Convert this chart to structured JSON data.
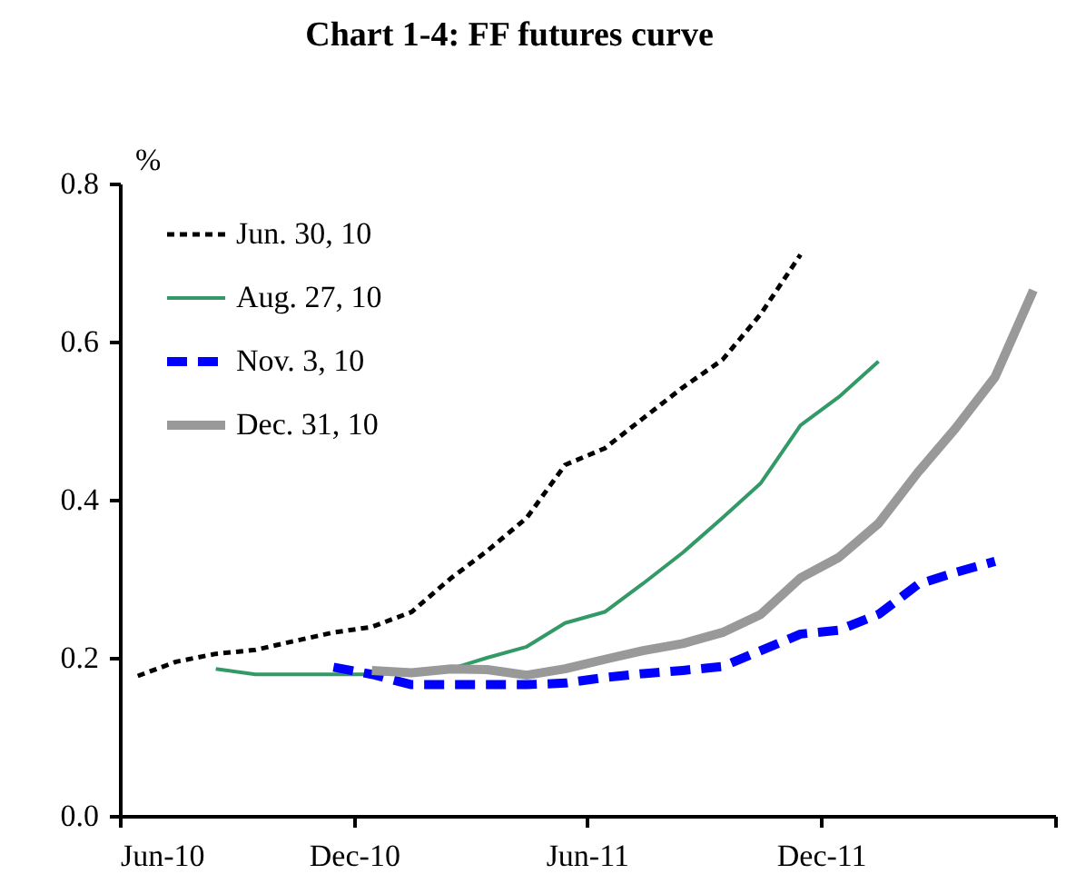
{
  "chart_data": {
    "type": "line",
    "title": "Chart 1-4: FF futures curve",
    "ylabel": "%",
    "xlim": [
      "2010-06-01",
      "2012-06-01"
    ],
    "xticks": [
      {
        "value": "2010-06-01",
        "label": "Jun-10"
      },
      {
        "value": "2010-12-01",
        "label": "Dec-10"
      },
      {
        "value": "2011-06-01",
        "label": "Jun-11"
      },
      {
        "value": "2011-12-01",
        "label": "Dec-11"
      },
      {
        "value": "2012-06-01",
        "label": null
      }
    ],
    "ylim": [
      0,
      0.8
    ],
    "yticks": [
      {
        "value": 0,
        "label": "0.0"
      },
      {
        "value": 0.2,
        "label": "0.2"
      },
      {
        "value": 0.4,
        "label": "0.4"
      },
      {
        "value": 0.6,
        "label": "0.6"
      },
      {
        "value": 0.8,
        "label": "0.8"
      }
    ],
    "grid": false,
    "legend": "top left",
    "marker": "none",
    "series": [
      {
        "name": "Jun. 30, 10",
        "color": "#000000",
        "line_style": "dashed",
        "x": [
          "2010-06-15",
          "2010-07-15",
          "2010-08-15",
          "2010-09-15",
          "2010-10-15",
          "2010-11-15",
          "2010-12-15",
          "2011-01-15",
          "2011-02-15",
          "2011-03-15",
          "2011-04-15",
          "2011-05-15",
          "2011-06-15",
          "2011-07-15",
          "2011-08-15",
          "2011-09-15",
          "2011-10-15",
          "2011-11-15"
        ],
        "values": [
          0.177,
          0.195,
          0.205,
          0.21,
          0.221,
          0.232,
          0.239,
          0.258,
          0.301,
          0.335,
          0.377,
          0.444,
          0.465,
          0.503,
          0.542,
          0.577,
          0.635,
          0.71
        ]
      },
      {
        "name": "Aug. 27, 10",
        "color": "#339966",
        "line_style": "solid",
        "x": [
          "2010-08-15",
          "2010-09-15",
          "2010-10-15",
          "2010-11-15",
          "2010-12-15",
          "2011-01-15",
          "2011-02-15",
          "2011-03-15",
          "2011-04-15",
          "2011-05-15",
          "2011-06-15",
          "2011-07-15",
          "2011-08-15",
          "2011-09-15",
          "2011-10-15",
          "2011-11-15",
          "2011-12-15",
          "2012-01-15"
        ],
        "values": [
          0.186,
          0.179,
          0.179,
          0.179,
          0.179,
          null,
          0.186,
          0.2,
          0.214,
          0.244,
          0.258,
          0.294,
          0.333,
          0.377,
          0.421,
          0.494,
          0.53,
          0.575
        ]
      },
      {
        "name": "Nov. 3, 10",
        "color": "#0000ff",
        "line_style": "dashed",
        "x": [
          "2010-11-15",
          "2010-12-15",
          "2011-01-15",
          "2011-02-15",
          "2011-03-15",
          "2011-04-15",
          "2011-05-15",
          "2011-06-15",
          "2011-07-15",
          "2011-08-15",
          "2011-09-15",
          "2011-10-15",
          "2011-11-15",
          "2011-12-15",
          "2012-01-15",
          "2012-02-15",
          "2012-03-15",
          "2012-04-15"
        ],
        "values": [
          0.188,
          0.179,
          0.166,
          0.166,
          0.166,
          0.166,
          0.168,
          0.175,
          0.18,
          0.184,
          0.189,
          0.209,
          0.23,
          0.235,
          0.255,
          0.293,
          0.308,
          0.322
        ]
      },
      {
        "name": "Dec. 31, 10",
        "color": "#999999",
        "line_style": "solid",
        "x": [
          "2010-12-15",
          "2011-01-15",
          "2011-02-15",
          "2011-03-15",
          "2011-04-15",
          "2011-05-15",
          "2011-06-15",
          "2011-07-15",
          "2011-08-15",
          "2011-09-15",
          "2011-10-15",
          "2011-11-15",
          "2011-12-15",
          "2012-01-15",
          "2012-02-15",
          "2012-03-15",
          "2012-04-15",
          "2012-05-15"
        ],
        "values": [
          0.184,
          0.181,
          0.186,
          0.185,
          0.178,
          0.186,
          0.198,
          0.209,
          0.218,
          0.232,
          0.255,
          0.301,
          0.327,
          0.37,
          0.435,
          0.49,
          0.555,
          0.665
        ]
      }
    ]
  }
}
